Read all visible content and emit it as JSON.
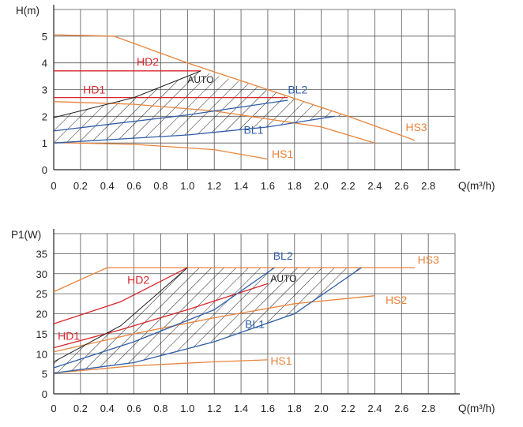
{
  "chart_data": [
    {
      "type": "line",
      "ylabel": "H(m)",
      "xlabel": "Q(m³/h)",
      "xlim": [
        0,
        3.0
      ],
      "ylim": [
        0,
        6
      ],
      "x_ticks": [
        "0",
        "0.2",
        "0.4",
        "0.6",
        "0.8",
        "1.0",
        "1.2",
        "1.4",
        "1.6",
        "1.8",
        "2.0",
        "2.2",
        "2.4",
        "2.6",
        "2.8"
      ],
      "y_ticks": [
        "0",
        "1",
        "2",
        "3",
        "4",
        "5"
      ],
      "grid": true,
      "colors": {
        "HS": "#e8843c",
        "HD": "#d9252b",
        "BL": "#2f5ea8",
        "AUTO": "#222222"
      },
      "series": [
        {
          "name": "HS3",
          "color": "HS",
          "points": [
            [
              0,
              5.05
            ],
            [
              0.45,
              5.0
            ],
            [
              1.0,
              4.0
            ],
            [
              1.6,
              3.0
            ],
            [
              2.2,
              2.0
            ],
            [
              2.7,
              1.1
            ]
          ]
        },
        {
          "name": "",
          "color": "HS",
          "points": [
            [
              0,
              2.55
            ],
            [
              0.6,
              2.45
            ],
            [
              1.2,
              2.2
            ],
            [
              2.0,
              1.6
            ],
            [
              2.4,
              1.0
            ]
          ]
        },
        {
          "name": "HS1",
          "color": "HS",
          "points": [
            [
              0,
              1.02
            ],
            [
              0.6,
              0.95
            ],
            [
              1.2,
              0.75
            ],
            [
              1.6,
              0.4
            ]
          ]
        },
        {
          "name": "HD2",
          "color": "HD",
          "points": [
            [
              0,
              3.7
            ],
            [
              1.1,
              3.7
            ]
          ]
        },
        {
          "name": "HD1",
          "color": "HD",
          "points": [
            [
              0,
              2.7
            ],
            [
              1.1,
              2.7
            ],
            [
              1.75,
              2.7
            ]
          ]
        },
        {
          "name": "BL2",
          "color": "BL",
          "points": [
            [
              0,
              1.45
            ],
            [
              1.0,
              2.05
            ],
            [
              1.75,
              2.6
            ]
          ]
        },
        {
          "name": "BL1",
          "color": "BL",
          "points": [
            [
              0,
              1.0
            ],
            [
              1.0,
              1.3
            ],
            [
              1.6,
              1.6
            ],
            [
              2.1,
              2.0
            ]
          ]
        },
        {
          "name": "AUTO",
          "color": "AUTO",
          "points": [
            [
              0,
              1.95
            ],
            [
              0.6,
              2.7
            ],
            [
              1.0,
              3.5
            ],
            [
              1.1,
              3.7
            ]
          ]
        }
      ],
      "hatch_region": [
        [
          0,
          1.0
        ],
        [
          0,
          1.95
        ],
        [
          0.6,
          2.7
        ],
        [
          1.0,
          3.5
        ],
        [
          1.1,
          3.7
        ],
        [
          1.6,
          3.0
        ],
        [
          2.2,
          2.0
        ],
        [
          2.1,
          2.0
        ],
        [
          1.6,
          1.6
        ],
        [
          1.0,
          1.3
        ]
      ],
      "labels": [
        {
          "text": "HS3",
          "x": 2.63,
          "y": 1.45,
          "color": "HS"
        },
        {
          "text": "HS1",
          "x": 1.63,
          "y": 0.45,
          "color": "HS"
        },
        {
          "text": "HD2",
          "x": 0.62,
          "y": 3.9,
          "color": "HD"
        },
        {
          "text": "HD1",
          "x": 0.22,
          "y": 2.85,
          "color": "HD"
        },
        {
          "text": "BL2",
          "x": 1.75,
          "y": 2.85,
          "color": "BL"
        },
        {
          "text": "BL1",
          "x": 1.42,
          "y": 1.35,
          "color": "BL"
        },
        {
          "text": "AUTO",
          "x": 1.0,
          "y": 3.25,
          "color": "AUTO"
        }
      ]
    },
    {
      "type": "line",
      "ylabel": "P1(W)",
      "xlabel": "Q(m³/h)",
      "xlim": [
        0,
        3.0
      ],
      "ylim": [
        0,
        40
      ],
      "x_ticks": [
        "0",
        "0.2",
        "0.4",
        "0.6",
        "0.8",
        "1.0",
        "1.2",
        "1.4",
        "1.6",
        "1.8",
        "2.0",
        "2.2",
        "2.4",
        "2.6",
        "2.8"
      ],
      "y_ticks": [
        "0",
        "5",
        "10",
        "15",
        "20",
        "25",
        "30",
        "35"
      ],
      "grid": true,
      "colors": {
        "HS": "#e8843c",
        "HD": "#d9252b",
        "BL": "#2f5ea8",
        "AUTO": "#222222"
      },
      "series": [
        {
          "name": "HS3",
          "color": "HS",
          "points": [
            [
              0,
              25.5
            ],
            [
              0.4,
              31.5
            ],
            [
              2.7,
              31.5
            ]
          ]
        },
        {
          "name": "HS2",
          "color": "HS",
          "points": [
            [
              0,
              10.5
            ],
            [
              0.6,
              15
            ],
            [
              1.2,
              19
            ],
            [
              1.8,
              22.5
            ],
            [
              2.4,
              24.5
            ]
          ]
        },
        {
          "name": "HS1",
          "color": "HS",
          "points": [
            [
              0,
              5.2
            ],
            [
              0.6,
              7
            ],
            [
              1.2,
              8
            ],
            [
              1.6,
              8.5
            ]
          ]
        },
        {
          "name": "HD2",
          "color": "HD",
          "points": [
            [
              0,
              17.5
            ],
            [
              0.5,
              23
            ],
            [
              1.0,
              31.5
            ]
          ]
        },
        {
          "name": "HD1",
          "color": "HD",
          "points": [
            [
              0,
              11.5
            ],
            [
              0.5,
              16
            ],
            [
              1.0,
              21
            ],
            [
              1.6,
              27.5
            ]
          ]
        },
        {
          "name": "BL2",
          "color": "BL",
          "points": [
            [
              0,
              6.5
            ],
            [
              0.6,
              13
            ],
            [
              1.2,
              21
            ],
            [
              1.65,
              31.5
            ]
          ]
        },
        {
          "name": "BL1",
          "color": "BL",
          "points": [
            [
              0,
              5.2
            ],
            [
              0.6,
              7.8
            ],
            [
              1.2,
              13
            ],
            [
              1.8,
              20
            ],
            [
              2.3,
              31.5
            ]
          ]
        },
        {
          "name": "AUTO",
          "color": "AUTO",
          "points": [
            [
              0,
              8
            ],
            [
              0.5,
              17
            ],
            [
              1.0,
              31.5
            ]
          ]
        }
      ],
      "hatch_region": [
        [
          0,
          5.2
        ],
        [
          0,
          8
        ],
        [
          0.5,
          17
        ],
        [
          1.0,
          31.5
        ],
        [
          2.3,
          31.5
        ],
        [
          1.8,
          20
        ],
        [
          1.2,
          13
        ],
        [
          0.6,
          7.8
        ]
      ],
      "labels": [
        {
          "text": "HS3",
          "x": 2.72,
          "y": 32.5,
          "color": "HS"
        },
        {
          "text": "HS2",
          "x": 2.48,
          "y": 22.5,
          "color": "HS"
        },
        {
          "text": "HS1",
          "x": 1.62,
          "y": 7.3,
          "color": "HS"
        },
        {
          "text": "HD2",
          "x": 0.55,
          "y": 27.5,
          "color": "HD"
        },
        {
          "text": "HD1",
          "x": 0.03,
          "y": 13.5,
          "color": "HD"
        },
        {
          "text": "BL2",
          "x": 1.64,
          "y": 33.5,
          "color": "BL"
        },
        {
          "text": "BL1",
          "x": 1.43,
          "y": 16.5,
          "color": "BL"
        },
        {
          "text": "AUTO",
          "x": 1.62,
          "y": 28.0,
          "color": "AUTO"
        }
      ]
    }
  ]
}
